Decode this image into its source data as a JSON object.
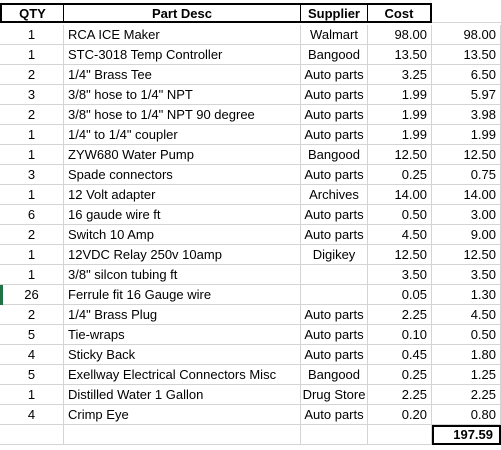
{
  "headers": {
    "qty": "QTY",
    "part": "Part Desc",
    "supplier": "Supplier",
    "cost": "Cost"
  },
  "rows": [
    {
      "qty": "1",
      "part": "RCA ICE Maker",
      "supplier": "Walmart",
      "cost": "98.00",
      "total": "98.00"
    },
    {
      "qty": "1",
      "part": "STC-3018 Temp Controller",
      "supplier": "Bangood",
      "cost": "13.50",
      "total": "13.50"
    },
    {
      "qty": "2",
      "part": "1/4\" Brass Tee",
      "supplier": "Auto parts",
      "cost": "3.25",
      "total": "6.50"
    },
    {
      "qty": "3",
      "part": "3/8\" hose to 1/4\" NPT",
      "supplier": "Auto parts",
      "cost": "1.99",
      "total": "5.97"
    },
    {
      "qty": "2",
      "part": "3/8\" hose to 1/4\" NPT 90 degree",
      "supplier": "Auto parts",
      "cost": "1.99",
      "total": "3.98"
    },
    {
      "qty": "1",
      "part": "1/4\" to  1/4\" coupler",
      "supplier": "Auto parts",
      "cost": "1.99",
      "total": "1.99"
    },
    {
      "qty": "1",
      "part": "ZYW680 Water Pump",
      "supplier": "Bangood",
      "cost": "12.50",
      "total": "12.50"
    },
    {
      "qty": "3",
      "part": "Spade connectors",
      "supplier": "Auto parts",
      "cost": "0.25",
      "total": "0.75"
    },
    {
      "qty": "1",
      "part": "12 Volt adapter",
      "supplier": "Archives",
      "cost": "14.00",
      "total": "14.00"
    },
    {
      "qty": "6",
      "part": "16 gaude wire ft",
      "supplier": "Auto parts",
      "cost": "0.50",
      "total": "3.00"
    },
    {
      "qty": "2",
      "part": "Switch 10 Amp",
      "supplier": "Auto parts",
      "cost": "4.50",
      "total": "9.00"
    },
    {
      "qty": "1",
      "part": "12VDC Relay 250v 10amp",
      "supplier": "Digikey",
      "cost": "12.50",
      "total": "12.50"
    },
    {
      "qty": "1",
      "part": "3/8\" silcon tubing ft",
      "supplier": "",
      "cost": "3.50",
      "total": "3.50"
    },
    {
      "qty": "26",
      "part": "Ferrule fit 16 Gauge wire",
      "supplier": "",
      "cost": "0.05",
      "total": "1.30"
    },
    {
      "qty": "2",
      "part": "1/4\" Brass Plug",
      "supplier": "Auto parts",
      "cost": "2.25",
      "total": "4.50"
    },
    {
      "qty": "5",
      "part": "Tie-wraps",
      "supplier": "Auto parts",
      "cost": "0.10",
      "total": "0.50"
    },
    {
      "qty": "4",
      "part": "Sticky Back",
      "supplier": "Auto parts",
      "cost": "0.45",
      "total": "1.80"
    },
    {
      "qty": "5",
      "part": "Exellway Electrical Connectors Misc",
      "supplier": "Bangood",
      "cost": "0.25",
      "total": "1.25"
    },
    {
      "qty": "1",
      "part": "Distilled Water 1 Gallon",
      "supplier": "Drug Store",
      "cost": "2.25",
      "total": "2.25"
    },
    {
      "qty": "4",
      "part": "Crimp Eye",
      "supplier": "Auto parts",
      "cost": "0.20",
      "total": "0.80"
    }
  ],
  "grand_total": "197.59",
  "colors": {
    "grid": "#d4d4d4",
    "border": "#000000",
    "selection_marker": "#217346"
  }
}
